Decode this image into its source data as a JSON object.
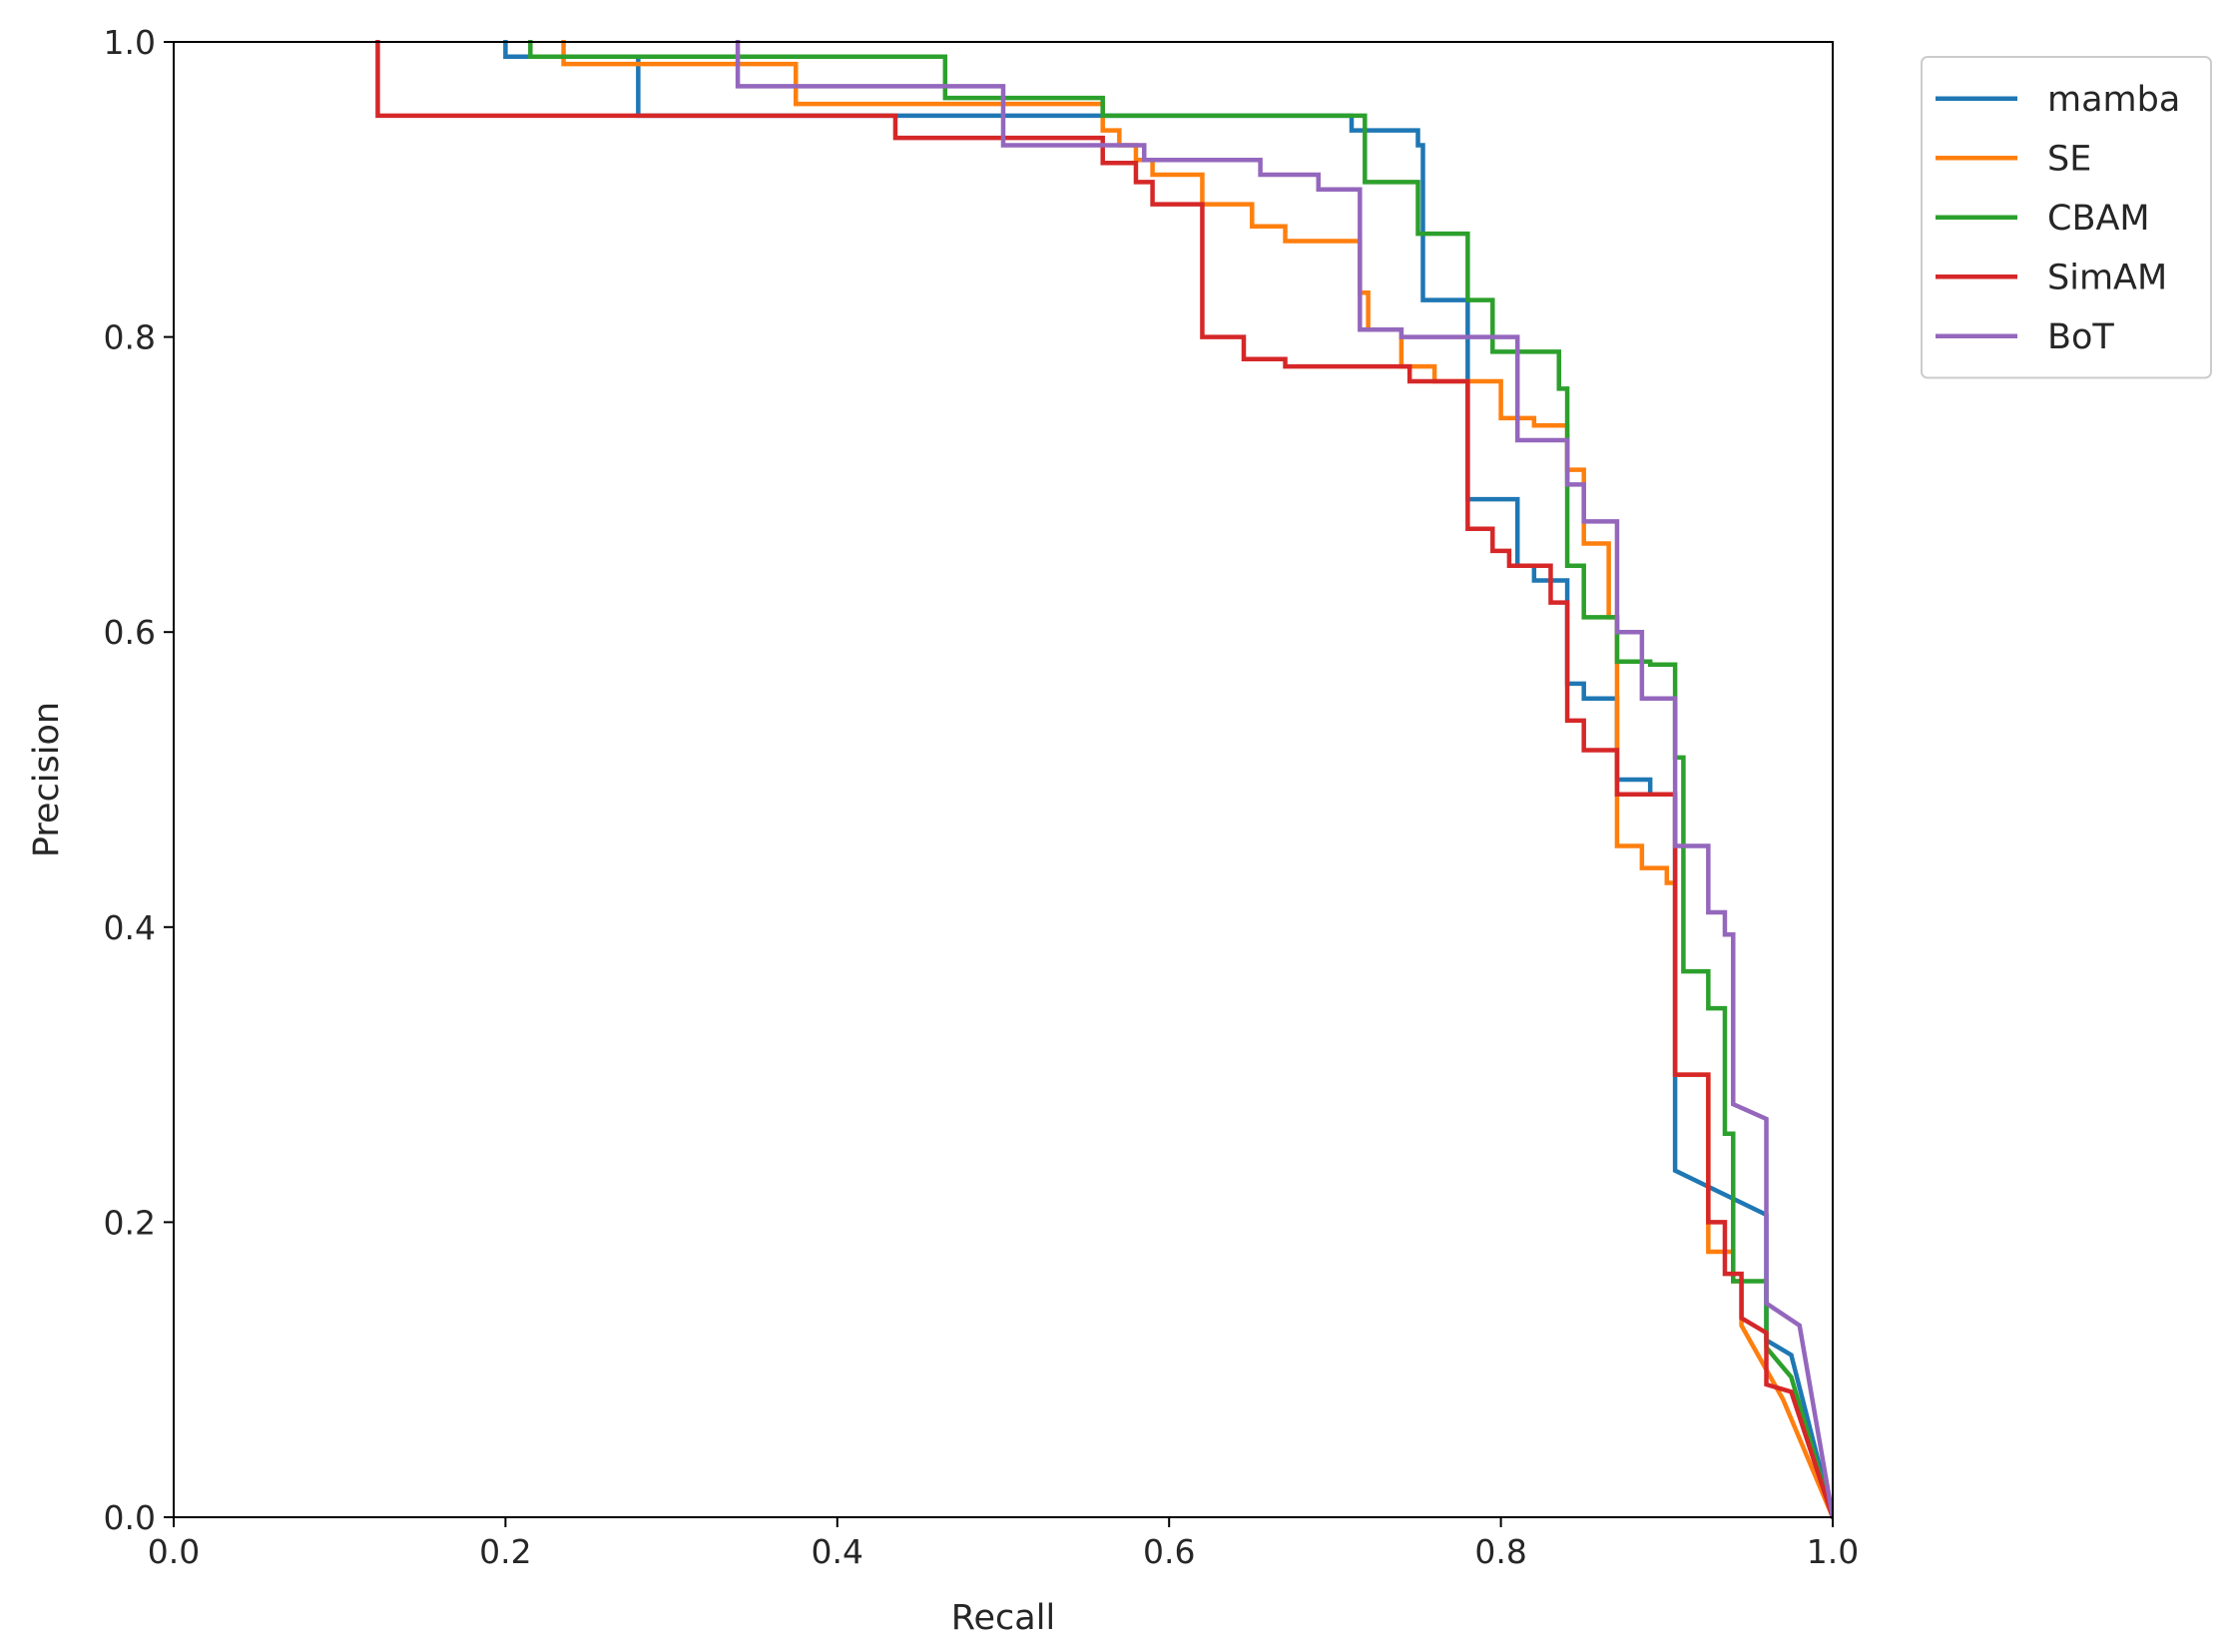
{
  "chart_data": {
    "type": "line",
    "title": "",
    "xlabel": "Recall",
    "ylabel": "Precision",
    "xlim": [
      0.0,
      1.0
    ],
    "ylim": [
      0.0,
      1.0
    ],
    "xticks": [
      "0.0",
      "0.2",
      "0.4",
      "0.6",
      "0.8",
      "1.0"
    ],
    "yticks": [
      "0.0",
      "0.2",
      "0.4",
      "0.6",
      "0.8",
      "1.0"
    ],
    "grid": false,
    "legend_position": "outside-top-right",
    "series": [
      {
        "name": "mamba",
        "color": "#1f77b4",
        "points": [
          [
            0.2,
            1.0
          ],
          [
            0.2,
            0.99
          ],
          [
            0.28,
            0.99
          ],
          [
            0.28,
            0.95
          ],
          [
            0.71,
            0.95
          ],
          [
            0.71,
            0.94
          ],
          [
            0.75,
            0.94
          ],
          [
            0.75,
            0.93
          ],
          [
            0.753,
            0.93
          ],
          [
            0.753,
            0.825
          ],
          [
            0.78,
            0.825
          ],
          [
            0.78,
            0.69
          ],
          [
            0.81,
            0.69
          ],
          [
            0.81,
            0.645
          ],
          [
            0.82,
            0.645
          ],
          [
            0.82,
            0.635
          ],
          [
            0.84,
            0.635
          ],
          [
            0.84,
            0.565
          ],
          [
            0.85,
            0.565
          ],
          [
            0.85,
            0.555
          ],
          [
            0.87,
            0.555
          ],
          [
            0.87,
            0.5
          ],
          [
            0.89,
            0.5
          ],
          [
            0.89,
            0.49
          ],
          [
            0.905,
            0.49
          ],
          [
            0.905,
            0.235
          ],
          [
            0.96,
            0.205
          ],
          [
            0.96,
            0.12
          ],
          [
            0.975,
            0.11
          ],
          [
            1.0,
            0.0
          ]
        ]
      },
      {
        "name": "SE",
        "color": "#ff7f0e",
        "points": [
          [
            0.235,
            1.0
          ],
          [
            0.235,
            0.985
          ],
          [
            0.375,
            0.985
          ],
          [
            0.375,
            0.958
          ],
          [
            0.56,
            0.958
          ],
          [
            0.56,
            0.94
          ],
          [
            0.57,
            0.94
          ],
          [
            0.57,
            0.93
          ],
          [
            0.58,
            0.93
          ],
          [
            0.58,
            0.92
          ],
          [
            0.59,
            0.92
          ],
          [
            0.59,
            0.91
          ],
          [
            0.62,
            0.91
          ],
          [
            0.62,
            0.89
          ],
          [
            0.65,
            0.89
          ],
          [
            0.65,
            0.875
          ],
          [
            0.67,
            0.875
          ],
          [
            0.67,
            0.865
          ],
          [
            0.715,
            0.865
          ],
          [
            0.715,
            0.83
          ],
          [
            0.72,
            0.83
          ],
          [
            0.72,
            0.805
          ],
          [
            0.74,
            0.805
          ],
          [
            0.74,
            0.78
          ],
          [
            0.76,
            0.78
          ],
          [
            0.76,
            0.77
          ],
          [
            0.8,
            0.77
          ],
          [
            0.8,
            0.745
          ],
          [
            0.82,
            0.745
          ],
          [
            0.82,
            0.74
          ],
          [
            0.84,
            0.74
          ],
          [
            0.84,
            0.71
          ],
          [
            0.85,
            0.71
          ],
          [
            0.85,
            0.66
          ],
          [
            0.865,
            0.66
          ],
          [
            0.865,
            0.61
          ],
          [
            0.87,
            0.61
          ],
          [
            0.87,
            0.455
          ],
          [
            0.885,
            0.455
          ],
          [
            0.885,
            0.44
          ],
          [
            0.9,
            0.44
          ],
          [
            0.9,
            0.43
          ],
          [
            0.905,
            0.43
          ],
          [
            0.905,
            0.3
          ],
          [
            0.925,
            0.3
          ],
          [
            0.925,
            0.18
          ],
          [
            0.94,
            0.18
          ],
          [
            0.94,
            0.16
          ],
          [
            0.945,
            0.16
          ],
          [
            0.945,
            0.13
          ],
          [
            0.97,
            0.08
          ],
          [
            1.0,
            0.0
          ]
        ]
      },
      {
        "name": "CBAM",
        "color": "#2ca02c",
        "points": [
          [
            0.215,
            1.0
          ],
          [
            0.215,
            0.99
          ],
          [
            0.465,
            0.99
          ],
          [
            0.465,
            0.962
          ],
          [
            0.56,
            0.962
          ],
          [
            0.56,
            0.95
          ],
          [
            0.718,
            0.95
          ],
          [
            0.718,
            0.905
          ],
          [
            0.75,
            0.905
          ],
          [
            0.75,
            0.87
          ],
          [
            0.78,
            0.87
          ],
          [
            0.78,
            0.825
          ],
          [
            0.795,
            0.825
          ],
          [
            0.795,
            0.79
          ],
          [
            0.835,
            0.79
          ],
          [
            0.835,
            0.765
          ],
          [
            0.84,
            0.765
          ],
          [
            0.84,
            0.645
          ],
          [
            0.85,
            0.645
          ],
          [
            0.85,
            0.61
          ],
          [
            0.87,
            0.61
          ],
          [
            0.87,
            0.58
          ],
          [
            0.89,
            0.58
          ],
          [
            0.89,
            0.578
          ],
          [
            0.905,
            0.578
          ],
          [
            0.905,
            0.515
          ],
          [
            0.91,
            0.515
          ],
          [
            0.91,
            0.37
          ],
          [
            0.925,
            0.37
          ],
          [
            0.925,
            0.345
          ],
          [
            0.935,
            0.345
          ],
          [
            0.935,
            0.26
          ],
          [
            0.94,
            0.26
          ],
          [
            0.94,
            0.16
          ],
          [
            0.96,
            0.16
          ],
          [
            0.96,
            0.115
          ],
          [
            0.975,
            0.095
          ],
          [
            1.0,
            0.0
          ]
        ]
      },
      {
        "name": "SimAM",
        "color": "#d62728",
        "points": [
          [
            0.123,
            1.0
          ],
          [
            0.123,
            0.95
          ],
          [
            0.435,
            0.95
          ],
          [
            0.435,
            0.935
          ],
          [
            0.56,
            0.935
          ],
          [
            0.56,
            0.918
          ],
          [
            0.58,
            0.918
          ],
          [
            0.58,
            0.905
          ],
          [
            0.59,
            0.905
          ],
          [
            0.59,
            0.89
          ],
          [
            0.62,
            0.89
          ],
          [
            0.62,
            0.8
          ],
          [
            0.645,
            0.8
          ],
          [
            0.645,
            0.785
          ],
          [
            0.67,
            0.785
          ],
          [
            0.67,
            0.78
          ],
          [
            0.745,
            0.78
          ],
          [
            0.745,
            0.77
          ],
          [
            0.78,
            0.77
          ],
          [
            0.78,
            0.67
          ],
          [
            0.795,
            0.67
          ],
          [
            0.795,
            0.655
          ],
          [
            0.805,
            0.655
          ],
          [
            0.805,
            0.645
          ],
          [
            0.83,
            0.645
          ],
          [
            0.83,
            0.62
          ],
          [
            0.84,
            0.62
          ],
          [
            0.84,
            0.54
          ],
          [
            0.85,
            0.54
          ],
          [
            0.85,
            0.52
          ],
          [
            0.87,
            0.52
          ],
          [
            0.87,
            0.49
          ],
          [
            0.905,
            0.49
          ],
          [
            0.905,
            0.3
          ],
          [
            0.925,
            0.3
          ],
          [
            0.925,
            0.2
          ],
          [
            0.935,
            0.2
          ],
          [
            0.935,
            0.165
          ],
          [
            0.945,
            0.165
          ],
          [
            0.945,
            0.135
          ],
          [
            0.96,
            0.125
          ],
          [
            0.96,
            0.09
          ],
          [
            0.975,
            0.085
          ],
          [
            1.0,
            0.0
          ]
        ]
      },
      {
        "name": "BoT",
        "color": "#9467bd",
        "points": [
          [
            0.34,
            1.0
          ],
          [
            0.34,
            0.97
          ],
          [
            0.5,
            0.97
          ],
          [
            0.5,
            0.93
          ],
          [
            0.585,
            0.93
          ],
          [
            0.585,
            0.92
          ],
          [
            0.655,
            0.92
          ],
          [
            0.655,
            0.91
          ],
          [
            0.69,
            0.91
          ],
          [
            0.69,
            0.9
          ],
          [
            0.715,
            0.9
          ],
          [
            0.715,
            0.805
          ],
          [
            0.74,
            0.805
          ],
          [
            0.74,
            0.8
          ],
          [
            0.81,
            0.8
          ],
          [
            0.81,
            0.73
          ],
          [
            0.84,
            0.73
          ],
          [
            0.84,
            0.7
          ],
          [
            0.85,
            0.7
          ],
          [
            0.85,
            0.675
          ],
          [
            0.87,
            0.675
          ],
          [
            0.87,
            0.6
          ],
          [
            0.885,
            0.6
          ],
          [
            0.885,
            0.555
          ],
          [
            0.905,
            0.555
          ],
          [
            0.905,
            0.455
          ],
          [
            0.925,
            0.455
          ],
          [
            0.925,
            0.41
          ],
          [
            0.935,
            0.41
          ],
          [
            0.935,
            0.395
          ],
          [
            0.94,
            0.395
          ],
          [
            0.94,
            0.28
          ],
          [
            0.96,
            0.27
          ],
          [
            0.96,
            0.145
          ],
          [
            0.98,
            0.13
          ],
          [
            1.0,
            0.0
          ]
        ]
      }
    ]
  }
}
